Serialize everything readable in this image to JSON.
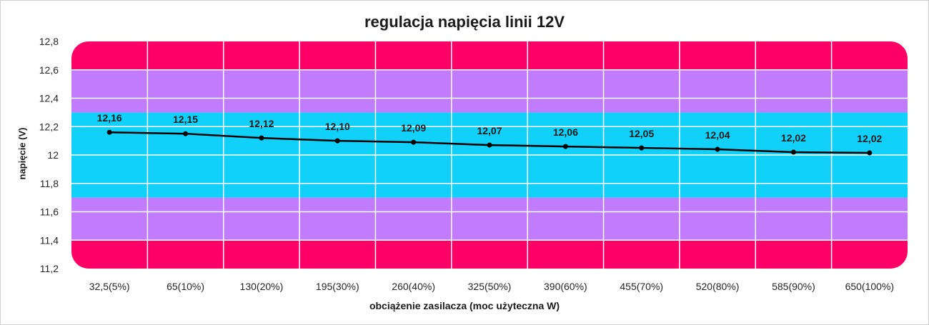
{
  "chart_data": {
    "type": "line",
    "title": "regulacja napięcia linii 12V",
    "xlabel": "obciążenie zasilacza (moc użyteczna W)",
    "ylabel": "napięcie (V)",
    "categories": [
      "32,5(5%)",
      "65(10%)",
      "130(20%)",
      "195(30%)",
      "260(40%)",
      "325(50%)",
      "390(60%)",
      "455(70%)",
      "520(80%)",
      "585(90%)",
      "650(100%)"
    ],
    "series": [
      {
        "values": [
          12.16,
          12.15,
          12.12,
          12.1,
          12.09,
          12.07,
          12.06,
          12.05,
          12.04,
          12.02,
          12.015
        ],
        "labels": [
          "12,16",
          "12,15",
          "12,12",
          "12,10",
          "12,09",
          "12,07",
          "12,06",
          "12,05",
          "12,04",
          "12,02",
          "12,02"
        ],
        "color": "#000000"
      }
    ],
    "ylim": [
      11.2,
      12.8
    ],
    "yticks": [
      "11,2",
      "11,4",
      "11,6",
      "11,8",
      "12",
      "12,2",
      "12,4",
      "12,6",
      "12,8"
    ],
    "bands": [
      {
        "from": 11.2,
        "to": 11.4,
        "color": "#ff0066"
      },
      {
        "from": 11.4,
        "to": 11.7,
        "color": "#c07cfc"
      },
      {
        "from": 11.7,
        "to": 12.3,
        "color": "#11d0fa"
      },
      {
        "from": 12.3,
        "to": 12.6,
        "color": "#c07cfc"
      },
      {
        "from": 12.6,
        "to": 12.8,
        "color": "#ff0066"
      }
    ],
    "grid": true,
    "legend": "none"
  }
}
